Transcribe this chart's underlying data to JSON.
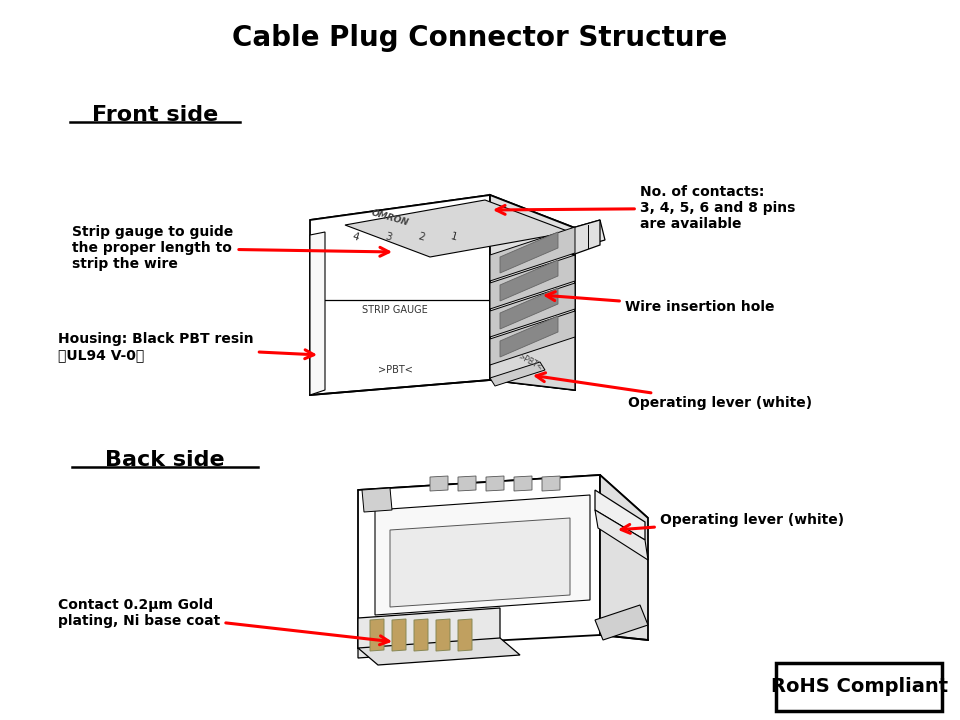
{
  "title": "Cable Plug Connector Structure",
  "title_fontsize": 20,
  "title_fontweight": "bold",
  "bg_color": "#ffffff",
  "front_side_label": "Front side",
  "back_side_label": "Back side",
  "rohs_label": "RoHS Compliant",
  "text_color": "#000000",
  "line_color": "#000000",
  "arrow_color": "#ff0000",
  "annotation_fontsize": 10,
  "annotation_fontweight": "bold"
}
